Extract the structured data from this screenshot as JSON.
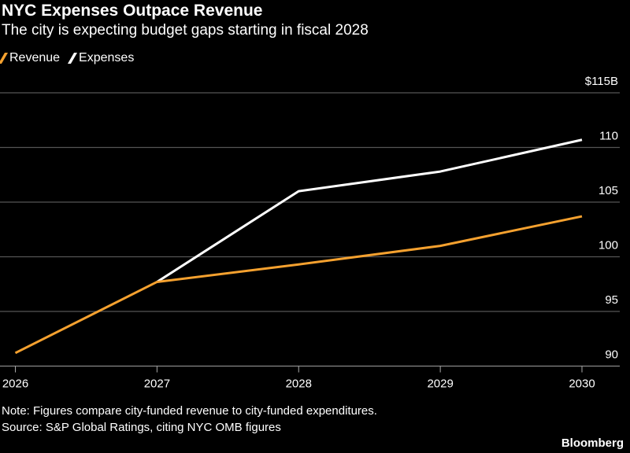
{
  "header": {
    "title": "NYC Expenses Outpace Revenue",
    "subtitle": "The city is expecting budget gaps starting in fiscal 2028"
  },
  "footer": {
    "note": "Note: Figures compare city-funded revenue to city-funded expenditures.",
    "source": "Source: S&P Global Ratings, citing NYC OMB figures",
    "brand": "Bloomberg"
  },
  "chart_data": {
    "type": "line",
    "title": "NYC Expenses Outpace Revenue",
    "subtitle": "The city is expecting budget gaps starting in fiscal 2028",
    "x": [
      "2026",
      "2027",
      "2028",
      "2029",
      "2030"
    ],
    "ylim": [
      90,
      115
    ],
    "yticks": [
      {
        "value": 115,
        "label": "$115B"
      },
      {
        "value": 110,
        "label": "110"
      },
      {
        "value": 105,
        "label": "105"
      },
      {
        "value": 100,
        "label": "100"
      },
      {
        "value": 95,
        "label": "95"
      },
      {
        "value": 90,
        "label": "90"
      }
    ],
    "grid": true,
    "legend": "top-left",
    "series": [
      {
        "name": "Revenue",
        "color": "#f5a12f",
        "values": [
          91.2,
          97.7,
          99.3,
          101.0,
          103.7
        ]
      },
      {
        "name": "Expenses",
        "color": "#ffffff",
        "values": [
          null,
          97.7,
          106.0,
          107.8,
          110.7
        ]
      }
    ]
  }
}
